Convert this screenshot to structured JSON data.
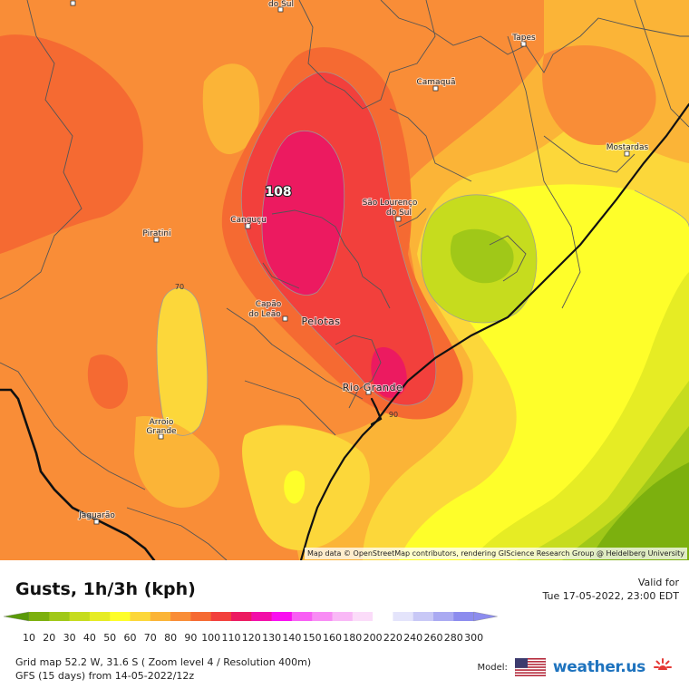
{
  "map": {
    "cities": [
      {
        "name": "do Sul",
        "id": "do-sul"
      },
      {
        "name": "Tapes",
        "id": "tapes"
      },
      {
        "name": "Camaquã",
        "id": "camaqua"
      },
      {
        "name": "Mostardas",
        "id": "mostardas"
      },
      {
        "name": "Canguçu",
        "id": "cangucu"
      },
      {
        "name": "São Lourenço",
        "id": "sao-lourenco"
      },
      {
        "name": "do Sul",
        "id": "sao-lourenco-2"
      },
      {
        "name": "Piratini",
        "id": "piratini"
      },
      {
        "name": "Capão",
        "id": "capao"
      },
      {
        "name": "do Leão",
        "id": "capao-2"
      },
      {
        "name": "Pelotas",
        "id": "pelotas"
      },
      {
        "name": "Rio Grande",
        "id": "rio-grande"
      },
      {
        "name": "Arroio",
        "id": "arroio"
      },
      {
        "name": "Grande",
        "id": "arroio-2"
      },
      {
        "name": "Jaguarão",
        "id": "jaguarao"
      }
    ],
    "peak_value": "108",
    "isoline_labels": [
      "70",
      "90"
    ],
    "attribution": "Map data © OpenStreetMap contributors, rendering GIScience Research Group @ Heidelberg University"
  },
  "legend": {
    "title": "Gusts, 1h/3h (kph)",
    "valid_label": "Valid for",
    "valid_time": "Tue 17-05-2022, 23:00 EDT",
    "scale": [
      {
        "v": "10",
        "c": "#5a9a08"
      },
      {
        "v": "20",
        "c": "#7cb00e"
      },
      {
        "v": "30",
        "c": "#a0c818"
      },
      {
        "v": "40",
        "c": "#c6dc1e"
      },
      {
        "v": "50",
        "c": "#e6ec24"
      },
      {
        "v": "60",
        "c": "#fefe2a"
      },
      {
        "v": "70",
        "c": "#fcd73a"
      },
      {
        "v": "80",
        "c": "#fbb437"
      },
      {
        "v": "90",
        "c": "#f98d37"
      },
      {
        "v": "100",
        "c": "#f56a32"
      },
      {
        "v": "110",
        "c": "#f2403c"
      },
      {
        "v": "120",
        "c": "#ec1a60"
      },
      {
        "v": "130",
        "c": "#f20ea8"
      },
      {
        "v": "140",
        "c": "#f90ef0"
      },
      {
        "v": "150",
        "c": "#f85ef4"
      },
      {
        "v": "160",
        "c": "#f88cf4"
      },
      {
        "v": "180",
        "c": "#f9b8f6"
      },
      {
        "v": "200",
        "c": "#fbdcf9"
      },
      {
        "v": "220",
        "c": "#ffffff"
      },
      {
        "v": "240",
        "c": "#e4e4fb"
      },
      {
        "v": "260",
        "c": "#c8c8f6"
      },
      {
        "v": "280",
        "c": "#aaaaf2"
      },
      {
        "v": "300",
        "c": "#8c8cee"
      }
    ],
    "grid_info": "Grid map 52.2 W, 31.6 S ( Zoom level 4 / Resolution 400m)",
    "model_info": "GFS (15 days) from  14-05-2022/12z",
    "model_label": "Model:",
    "brand": "weather.us"
  },
  "colors": {
    "orange_dark": "#f56a32",
    "orange": "#f98d37",
    "orange_light": "#fbb437",
    "amber": "#fcd73a",
    "yellow": "#fefe2a",
    "lime": "#c6dc1e",
    "green": "#7cb00e",
    "red": "#f2403c",
    "magenta": "#ec1a60"
  }
}
